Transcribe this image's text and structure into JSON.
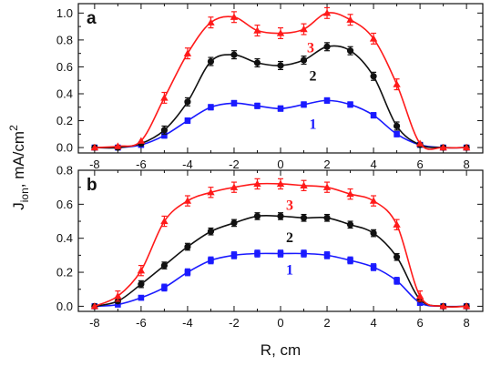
{
  "chart_data": [
    {
      "type": "line",
      "panel_label": "a",
      "x": [
        -8,
        -7,
        -6,
        -5,
        -4,
        -3,
        -2,
        -1,
        0,
        1,
        2,
        3,
        4,
        5,
        6,
        7,
        8
      ],
      "xlim": [
        -8.7,
        8.7
      ],
      "ylim": [
        -0.04,
        1.07
      ],
      "xticks": [
        "-8",
        "-6",
        "-4",
        "-2",
        "0",
        "2",
        "4",
        "6",
        "8"
      ],
      "xtick_values": [
        -8,
        -6,
        -4,
        -2,
        0,
        2,
        4,
        6,
        8
      ],
      "yticks": [
        "0.0",
        "0.2",
        "0.4",
        "0.6",
        "0.8",
        "1.0"
      ],
      "ytick_values": [
        0,
        0.2,
        0.4,
        0.6,
        0.8,
        1.0
      ],
      "grid": false,
      "series": [
        {
          "name": "1",
          "color": "#1a1aff",
          "marker": "square",
          "values": [
            0.0,
            0.0,
            0.02,
            0.09,
            0.2,
            0.3,
            0.33,
            0.31,
            0.29,
            0.32,
            0.35,
            0.32,
            0.24,
            0.1,
            0.02,
            0.0,
            0.0
          ],
          "error": 0.02
        },
        {
          "name": "2",
          "color": "#111111",
          "marker": "circle",
          "values": [
            0.0,
            0.0,
            0.03,
            0.13,
            0.34,
            0.64,
            0.69,
            0.63,
            0.61,
            0.65,
            0.75,
            0.72,
            0.53,
            0.16,
            0.02,
            0.0,
            0.0
          ],
          "error": 0.03
        },
        {
          "name": "3",
          "color": "#ff1a1a",
          "marker": "triangle",
          "values": [
            0.0,
            0.01,
            0.05,
            0.37,
            0.7,
            0.93,
            0.97,
            0.87,
            0.85,
            0.88,
            1.0,
            0.95,
            0.81,
            0.47,
            0.03,
            0.0,
            0.0
          ],
          "error": 0.04
        }
      ]
    },
    {
      "type": "line",
      "panel_label": "b",
      "x": [
        -8,
        -7,
        -6,
        -5,
        -4,
        -3,
        -2,
        -1,
        0,
        1,
        2,
        3,
        4,
        5,
        6,
        7,
        8
      ],
      "xlim": [
        -8.7,
        8.7
      ],
      "ylim": [
        -0.03,
        0.8
      ],
      "xticks": [
        "-8",
        "-6",
        "-4",
        "-2",
        "0",
        "2",
        "4",
        "6",
        "8"
      ],
      "xtick_values": [
        -8,
        -6,
        -4,
        -2,
        0,
        2,
        4,
        6,
        8
      ],
      "yticks": [
        "0.0",
        "0.2",
        "0.4",
        "0.6",
        "0.8"
      ],
      "ytick_values": [
        0,
        0.2,
        0.4,
        0.6,
        0.8
      ],
      "grid": false,
      "series": [
        {
          "name": "1",
          "color": "#1a1aff",
          "marker": "square",
          "values": [
            0.0,
            0.01,
            0.05,
            0.11,
            0.2,
            0.27,
            0.3,
            0.31,
            0.31,
            0.31,
            0.3,
            0.27,
            0.23,
            0.15,
            0.02,
            0.0,
            0.0
          ],
          "error": 0.02
        },
        {
          "name": "2",
          "color": "#111111",
          "marker": "circle",
          "values": [
            0.0,
            0.03,
            0.13,
            0.24,
            0.35,
            0.44,
            0.49,
            0.53,
            0.53,
            0.52,
            0.52,
            0.48,
            0.43,
            0.29,
            0.04,
            0.0,
            0.0
          ],
          "error": 0.02
        },
        {
          "name": "3",
          "color": "#ff1a1a",
          "marker": "triangle",
          "values": [
            0.0,
            0.06,
            0.21,
            0.5,
            0.62,
            0.67,
            0.7,
            0.72,
            0.72,
            0.71,
            0.7,
            0.66,
            0.62,
            0.48,
            0.06,
            0.0,
            0.0
          ],
          "error": 0.03
        }
      ]
    }
  ],
  "axes": {
    "xlabel": "R, cm",
    "ylabel_main": "J",
    "ylabel_sub": "ion",
    "ylabel_rest": ", mA/cm",
    "ylabel_sup": "2"
  }
}
